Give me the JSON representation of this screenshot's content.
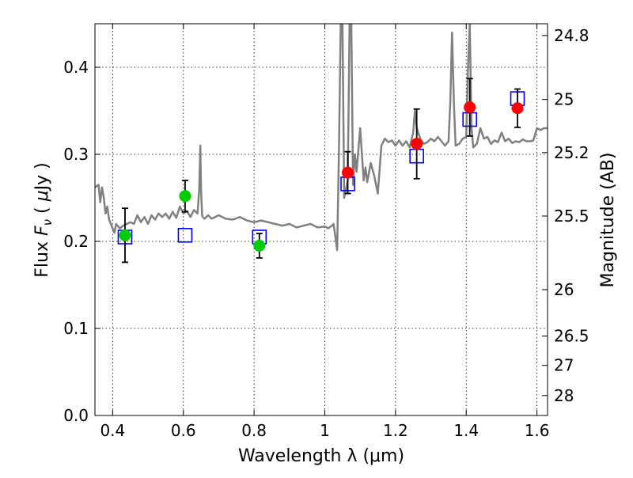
{
  "chart_data": {
    "type": "scatter",
    "title": "",
    "xlabel": "Wavelength  λ (μm)",
    "ylabel": "Flux  F_ν  ( μJy )",
    "y2label": "Magnitude (AB)",
    "xlim": [
      0.35,
      1.63
    ],
    "ylim": [
      0.0,
      0.45
    ],
    "grid": true,
    "legend": "none",
    "x_ticks": [
      {
        "value": 0.4,
        "label": "0.4"
      },
      {
        "value": 0.6,
        "label": "0.6"
      },
      {
        "value": 0.8,
        "label": "0.8"
      },
      {
        "value": 1.0,
        "label": "1"
      },
      {
        "value": 1.2,
        "label": "1.2"
      },
      {
        "value": 1.4,
        "label": "1.4"
      },
      {
        "value": 1.6,
        "label": "1.6"
      }
    ],
    "y_ticks": [
      {
        "value": 0.0,
        "label": "0.0"
      },
      {
        "value": 0.1,
        "label": "0.1"
      },
      {
        "value": 0.2,
        "label": "0.2"
      },
      {
        "value": 0.3,
        "label": "0.3"
      },
      {
        "value": 0.4,
        "label": "0.4"
      }
    ],
    "y2_ticks": [
      {
        "value": 24.8,
        "label": "24.8"
      },
      {
        "value": 25.0,
        "label": "25"
      },
      {
        "value": 25.2,
        "label": "25.2"
      },
      {
        "value": 25.5,
        "label": "25.5"
      },
      {
        "value": 26.0,
        "label": "26"
      },
      {
        "value": 26.5,
        "label": "26.5"
      },
      {
        "value": 27.0,
        "label": "27"
      },
      {
        "value": 28.0,
        "label": "28"
      }
    ],
    "colors": {
      "spectrum": "#808080",
      "optical_points": "#00cc00",
      "nir_points": "#ff0000",
      "model_squares": "#0000ff",
      "error_bars": "#000000"
    },
    "series": [
      {
        "kind": "line",
        "color": "#808080",
        "x": [
          0.35,
          0.36,
          0.365,
          0.37,
          0.375,
          0.38,
          0.385,
          0.39,
          0.4,
          0.405,
          0.41,
          0.42,
          0.43,
          0.44,
          0.45,
          0.46,
          0.47,
          0.48,
          0.49,
          0.5,
          0.51,
          0.52,
          0.53,
          0.54,
          0.55,
          0.56,
          0.57,
          0.58,
          0.59,
          0.6,
          0.61,
          0.62,
          0.63,
          0.64,
          0.645,
          0.648,
          0.65,
          0.653,
          0.655,
          0.66,
          0.67,
          0.68,
          0.69,
          0.7,
          0.72,
          0.74,
          0.76,
          0.78,
          0.8,
          0.82,
          0.84,
          0.86,
          0.88,
          0.9,
          0.92,
          0.94,
          0.96,
          0.98,
          1.0,
          1.01,
          1.02,
          1.025,
          1.03,
          1.035,
          1.04,
          1.045,
          1.05,
          1.055,
          1.06,
          1.065,
          1.07,
          1.075,
          1.08,
          1.085,
          1.09,
          1.1,
          1.11,
          1.115,
          1.12,
          1.13,
          1.14,
          1.15,
          1.16,
          1.17,
          1.18,
          1.19,
          1.2,
          1.21,
          1.22,
          1.23,
          1.24,
          1.25,
          1.255,
          1.26,
          1.27,
          1.28,
          1.29,
          1.3,
          1.31,
          1.32,
          1.33,
          1.34,
          1.35,
          1.355,
          1.36,
          1.365,
          1.37,
          1.38,
          1.39,
          1.4,
          1.405,
          1.41,
          1.415,
          1.42,
          1.43,
          1.44,
          1.45,
          1.46,
          1.47,
          1.48,
          1.49,
          1.5,
          1.51,
          1.52,
          1.53,
          1.54,
          1.55,
          1.56,
          1.57,
          1.58,
          1.59,
          1.6,
          1.61,
          1.62,
          1.63
        ],
        "y": [
          0.262,
          0.265,
          0.245,
          0.262,
          0.25,
          0.232,
          0.24,
          0.225,
          0.215,
          0.21,
          0.22,
          0.215,
          0.218,
          0.22,
          0.222,
          0.22,
          0.23,
          0.222,
          0.228,
          0.22,
          0.23,
          0.225,
          0.232,
          0.228,
          0.232,
          0.226,
          0.234,
          0.227,
          0.24,
          0.232,
          0.235,
          0.228,
          0.236,
          0.232,
          0.26,
          0.31,
          0.26,
          0.23,
          0.228,
          0.226,
          0.23,
          0.226,
          0.228,
          0.23,
          0.226,
          0.225,
          0.228,
          0.224,
          0.222,
          0.224,
          0.222,
          0.22,
          0.218,
          0.22,
          0.216,
          0.218,
          0.22,
          0.216,
          0.217,
          0.215,
          0.218,
          0.22,
          0.205,
          0.19,
          0.3,
          0.45,
          0.45,
          0.25,
          0.26,
          0.27,
          0.45,
          0.45,
          0.265,
          0.3,
          0.28,
          0.33,
          0.27,
          0.285,
          0.268,
          0.29,
          0.275,
          0.255,
          0.31,
          0.318,
          0.314,
          0.316,
          0.31,
          0.316,
          0.31,
          0.315,
          0.308,
          0.325,
          0.35,
          0.33,
          0.318,
          0.312,
          0.314,
          0.318,
          0.315,
          0.32,
          0.315,
          0.31,
          0.315,
          0.36,
          0.44,
          0.36,
          0.31,
          0.312,
          0.318,
          0.32,
          0.4,
          0.45,
          0.33,
          0.308,
          0.312,
          0.33,
          0.318,
          0.32,
          0.312,
          0.316,
          0.314,
          0.325,
          0.315,
          0.318,
          0.313,
          0.315,
          0.314,
          0.317,
          0.315,
          0.315,
          0.316,
          0.33,
          0.328,
          0.33,
          0.33
        ]
      },
      {
        "kind": "points",
        "marker": "circle",
        "color": "#00cc00",
        "points": [
          {
            "x": 0.435,
            "y": 0.207,
            "err": 0.031
          },
          {
            "x": 0.605,
            "y": 0.252,
            "err": 0.018
          },
          {
            "x": 0.815,
            "y": 0.195,
            "err": 0.014
          }
        ]
      },
      {
        "kind": "points",
        "marker": "circle",
        "color": "#ff0000",
        "points": [
          {
            "x": 1.065,
            "y": 0.279,
            "err": 0.024
          },
          {
            "x": 1.26,
            "y": 0.312,
            "err": 0.04
          },
          {
            "x": 1.41,
            "y": 0.354,
            "err": 0.033
          },
          {
            "x": 1.545,
            "y": 0.353,
            "err": 0.022
          }
        ]
      },
      {
        "kind": "points",
        "marker": "square",
        "color": "#0000ff",
        "points": [
          {
            "x": 0.435,
            "y": 0.205
          },
          {
            "x": 0.605,
            "y": 0.207
          },
          {
            "x": 0.815,
            "y": 0.205
          },
          {
            "x": 1.065,
            "y": 0.266
          },
          {
            "x": 1.26,
            "y": 0.298
          },
          {
            "x": 1.41,
            "y": 0.34
          },
          {
            "x": 1.545,
            "y": 0.364
          }
        ]
      }
    ]
  }
}
